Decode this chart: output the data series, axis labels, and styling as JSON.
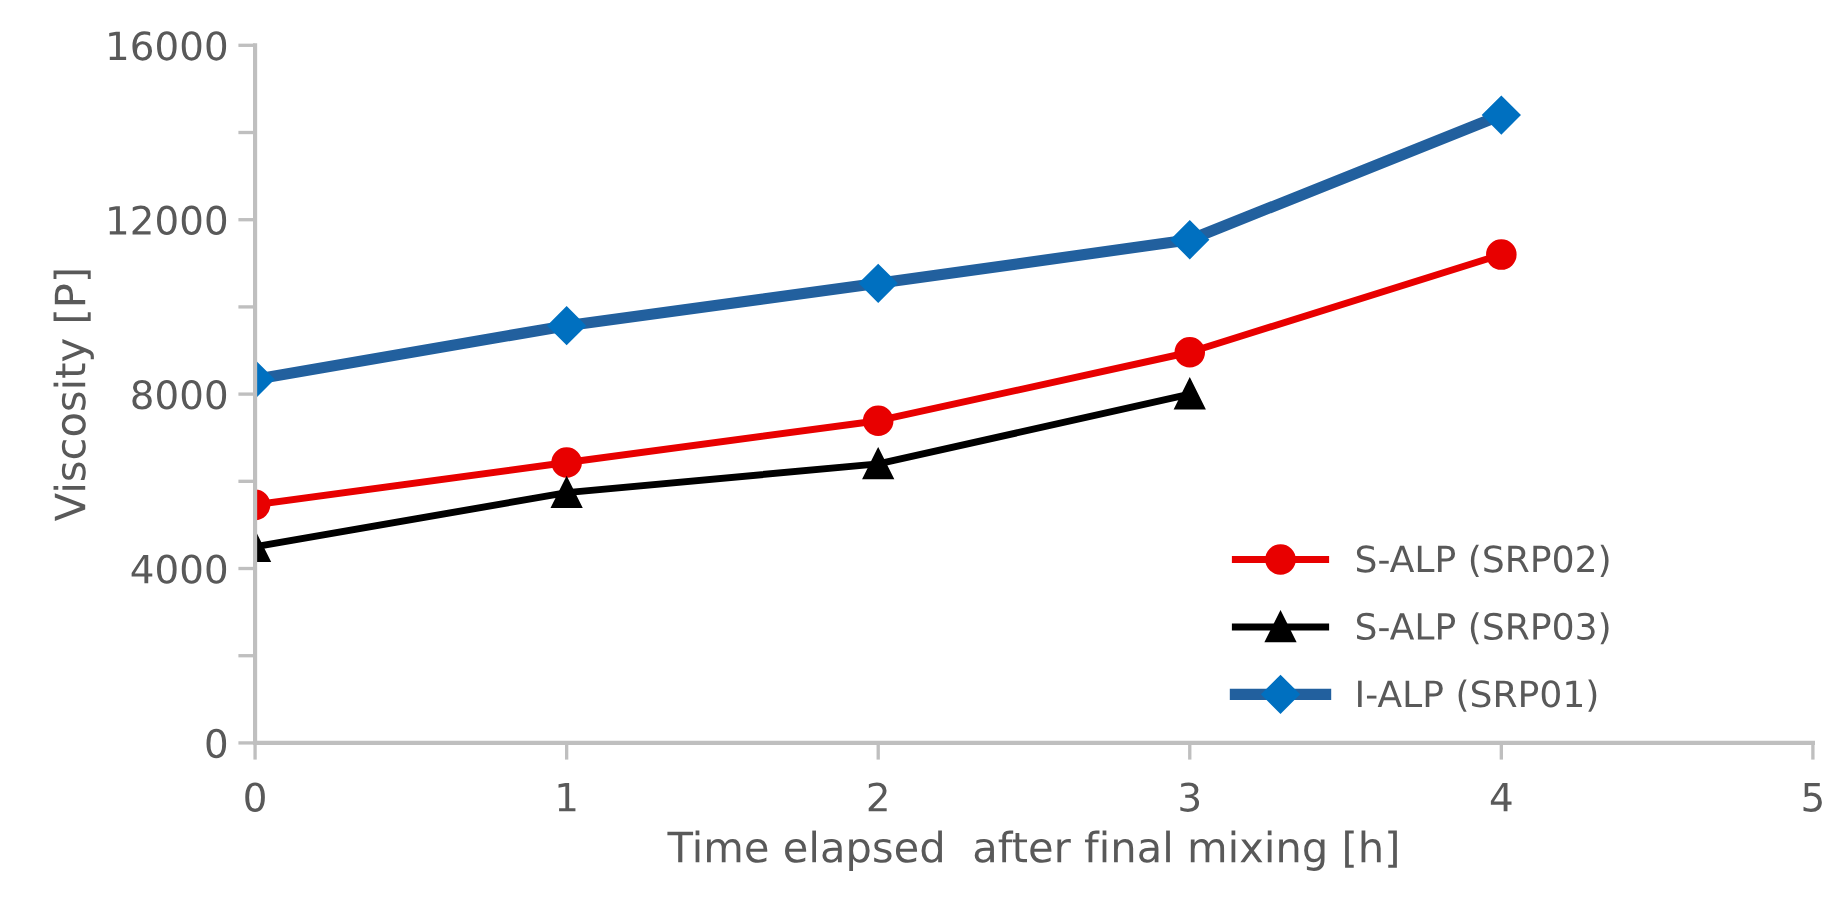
{
  "chart_data": {
    "type": "line",
    "xlabel": "Time elapsed  after final mixing [h]",
    "ylabel": "Viscosity [P]",
    "xlim": [
      0,
      5
    ],
    "xticks": [
      0,
      1,
      2,
      3,
      4,
      5
    ],
    "ylim": [
      0,
      16000
    ],
    "yticks": [
      0,
      {
        "value": 2000,
        "label": null
      },
      4000,
      {
        "value": 6000,
        "label": null
      },
      8000,
      {
        "value": 10000,
        "label": null
      },
      12000,
      {
        "value": 14000,
        "label": null
      },
      16000
    ],
    "grid": false,
    "legend": "bottom right",
    "series": [
      {
        "name": "S-ALP (SRP02)",
        "color": "#e80000",
        "marker": "circle",
        "x": [
          0,
          1,
          2,
          3,
          4
        ],
        "values": [
          5460,
          6430,
          7390,
          8960,
          11200
        ]
      },
      {
        "name": "S-ALP (SRP03)",
        "color": "#000000",
        "marker": "triangle",
        "x": [
          0,
          1,
          2,
          3
        ],
        "values": [
          4500,
          5740,
          6400,
          8000
        ]
      },
      {
        "name": "I-ALP (SRP01)",
        "color": "#22609e",
        "marker": "diamond",
        "x": [
          0,
          1,
          2,
          3,
          4
        ],
        "values": [
          8340,
          9570,
          10540,
          11540,
          14400
        ]
      }
    ]
  }
}
